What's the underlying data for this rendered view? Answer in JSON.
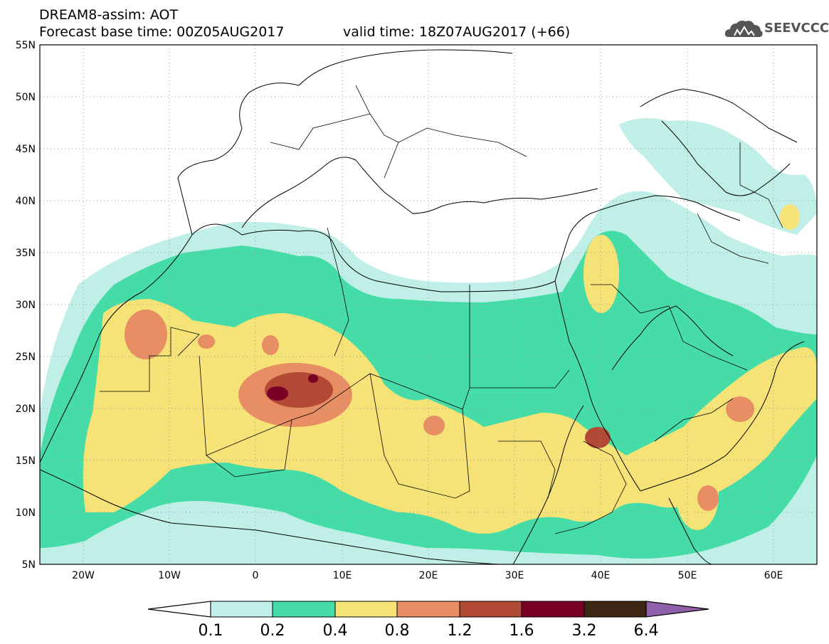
{
  "header": {
    "title": "DREAM8-assim: AOT",
    "base_time": "Forecast base time: 00Z05AUG2017",
    "valid_time": "valid time: 18Z07AUG2017 (+66)"
  },
  "logo": {
    "text": "SEEVCCC",
    "icon": "cloud-icon"
  },
  "map": {
    "lat_labels": [
      "55N",
      "50N",
      "45N",
      "40N",
      "35N",
      "30N",
      "25N",
      "20N",
      "15N",
      "10N",
      "5N"
    ],
    "lon_labels": [
      "20W",
      "10W",
      "0",
      "10E",
      "20E",
      "30E",
      "40E",
      "50E",
      "60E"
    ],
    "lon_range": [
      -25,
      65
    ],
    "lat_range": [
      5,
      55
    ]
  },
  "colorbar": {
    "labels": [
      "0.1",
      "0.2",
      "0.4",
      "0.8",
      "1.2",
      "1.6",
      "3.2",
      "6.4"
    ],
    "colors": [
      "#ffffff",
      "#bfefe6",
      "#46dca7",
      "#f5e378",
      "#e88e64",
      "#b14935",
      "#7b0026",
      "#3b2714",
      "#8f5fa9"
    ]
  },
  "colors": {
    "c1": "#bfefe6",
    "c2": "#46dca7",
    "c3": "#f5e378",
    "c4": "#e88e64",
    "c5": "#b14935",
    "c6": "#7b0026"
  }
}
